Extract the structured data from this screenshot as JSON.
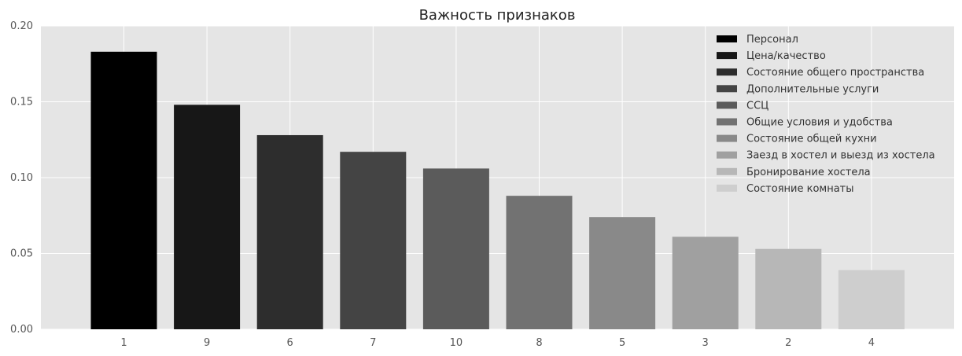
{
  "chart_data": {
    "type": "bar",
    "title": "Важность признаков",
    "xlabel": "",
    "ylabel": "",
    "categories": [
      "1",
      "9",
      "6",
      "7",
      "10",
      "8",
      "5",
      "3",
      "2",
      "4"
    ],
    "values": [
      0.183,
      0.148,
      0.128,
      0.117,
      0.106,
      0.088,
      0.074,
      0.061,
      0.053,
      0.039
    ],
    "ylim": [
      0,
      0.2
    ],
    "yticks": [
      "0.00",
      "0.05",
      "0.10",
      "0.15",
      "0.20"
    ],
    "grid": true,
    "legend_position": "top-right",
    "legend": [
      "Персонал",
      "Цена/качество",
      "Состояние общего пространства",
      "Дополнительные услуги",
      "ССЦ",
      "Общие условия и удобства",
      "Состояние общей кухни",
      "Заезд в хостел и выезд из хостела",
      "Бронирование хостела",
      "Состояние комнаты"
    ],
    "colors": [
      "#000000",
      "#171717",
      "#2d2d2d",
      "#444444",
      "#5b5b5b",
      "#727272",
      "#898989",
      "#a0a0a0",
      "#b7b7b7",
      "#cecece"
    ],
    "background_color": "#e5e5e5",
    "grid_color": "#ffffff"
  }
}
